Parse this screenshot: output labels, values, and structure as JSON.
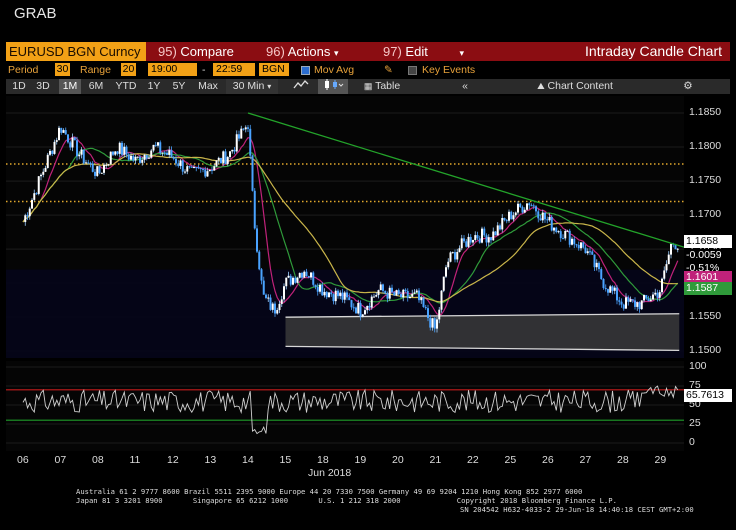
{
  "app_title": "GRAB",
  "header": {
    "ticker": "EURUSD BGN Curncy",
    "compare": {
      "num": "95)",
      "label": "Compare"
    },
    "actions": {
      "num": "96)",
      "label": "Actions"
    },
    "edit": {
      "num": "97)",
      "label": "Edit"
    },
    "chart_title": "Intraday Candle Chart"
  },
  "params": {
    "period_label": "Period",
    "period_value": "30",
    "range_label": "Range",
    "range_value": "20",
    "time_start": "19:00",
    "dash": "-",
    "time_end": "22:59",
    "source": "BGN",
    "mov_avg_label": "Mov Avg",
    "key_events_label": "Key Events"
  },
  "toolbar": {
    "periods": [
      "1D",
      "3D",
      "1M",
      "6M",
      "YTD",
      "1Y",
      "5Y",
      "Max"
    ],
    "selected_period": "1M",
    "interval": "30 Min",
    "table_label": "Table",
    "chart_content_label": "Chart Content",
    "back_icon": "double-chevron-left-icon",
    "settings_icon": "gear-icon"
  },
  "colors": {
    "candles": "#4aa3ff",
    "ma_fast": "#c0227a",
    "ma_mid": "#2f9a3a",
    "ma_slow": "#c9b54a",
    "trendline": "#23a32a",
    "support_band": "#d8d8d8",
    "dotted_level": "#e1a82d",
    "oscillator": "#d0d0d0",
    "osc_upper": "#c31d1d",
    "osc_lower": "#1e9c2a"
  },
  "chart_data": [
    {
      "type": "candlestick",
      "title": "",
      "y_ticks": [
        "1.1850",
        "1.1800",
        "1.1750",
        "1.1700",
        "1.1650",
        "1.1600",
        "1.1550",
        "1.1500"
      ],
      "ylim": [
        1.149,
        1.1875
      ],
      "x_ticks": [
        "06",
        "07",
        "08",
        "11",
        "12",
        "13",
        "14",
        "15",
        "18",
        "19",
        "20",
        "21",
        "22",
        "25",
        "26",
        "27",
        "28",
        "29"
      ],
      "x_month_label": "Jun 2018",
      "close_points": [
        [
          0,
          1.169
        ],
        [
          0.5,
          1.176
        ],
        [
          1,
          1.183
        ],
        [
          1.5,
          1.179
        ],
        [
          2,
          1.176
        ],
        [
          2.5,
          1.18
        ],
        [
          3,
          1.178
        ],
        [
          3.5,
          1.18
        ],
        [
          4,
          1.1785
        ],
        [
          4.5,
          1.176
        ],
        [
          5,
          1.177
        ],
        [
          5.5,
          1.179
        ],
        [
          6,
          1.1835
        ],
        [
          6.15,
          1.17
        ],
        [
          6.4,
          1.158
        ],
        [
          6.7,
          1.156
        ],
        [
          7,
          1.16
        ],
        [
          7.5,
          1.162
        ],
        [
          8,
          1.159
        ],
        [
          8.5,
          1.158
        ],
        [
          9,
          1.156
        ],
        [
          9.5,
          1.159
        ],
        [
          10,
          1.158
        ],
        [
          10.5,
          1.158
        ],
        [
          11,
          1.153
        ],
        [
          11.3,
          1.163
        ],
        [
          11.6,
          1.165
        ],
        [
          12,
          1.167
        ],
        [
          12.5,
          1.167
        ],
        [
          13,
          1.17
        ],
        [
          13.5,
          1.172
        ],
        [
          14,
          1.169
        ],
        [
          14.5,
          1.167
        ],
        [
          15,
          1.165
        ],
        [
          15.5,
          1.16
        ],
        [
          16,
          1.157
        ],
        [
          16.5,
          1.157
        ],
        [
          17,
          1.159
        ],
        [
          17.3,
          1.166
        ],
        [
          17.5,
          1.1658
        ]
      ],
      "last_price": "1.1658",
      "net_change": "-0.0059",
      "pct_change": "-0.51%",
      "ma_fast_last": "1.1601",
      "ma_mid_last": "1.1587",
      "ma_slow_last": "1.1616",
      "resistance_levels": [
        1.1775,
        1.172
      ],
      "trendline": [
        [
          6,
          1.185
        ],
        [
          17.5,
          1.1655
        ]
      ],
      "support_band": [
        [
          7,
          1.155
        ],
        [
          17.5,
          1.1555
        ]
      ],
      "support_lower": [
        [
          7,
          1.151
        ],
        [
          17.5,
          1.151
        ]
      ]
    },
    {
      "type": "line",
      "title": "",
      "y_ticks": [
        "100",
        "75",
        "50",
        "25",
        "0"
      ],
      "ylim": [
        0,
        100
      ],
      "last_value": "65.7613",
      "upper_band": 70,
      "lower_band": 30
    }
  ],
  "footer": {
    "line1": "Australia 61 2 9777 8600 Brazil 5511 2395 9000 Europe 44 20 7330 7500 Germany 49 69 9204 1210 Hong Kong 852 2977 6000",
    "line2": "Japan 81 3 3201 8900       Singapore 65 6212 1000       U.S. 1 212 318 2000             Copyright 2018 Bloomberg Finance L.P.",
    "line3": "SN 204542 H632-4033-2 29-Jun-18 14:40:18 CEST GMT+2:00"
  }
}
